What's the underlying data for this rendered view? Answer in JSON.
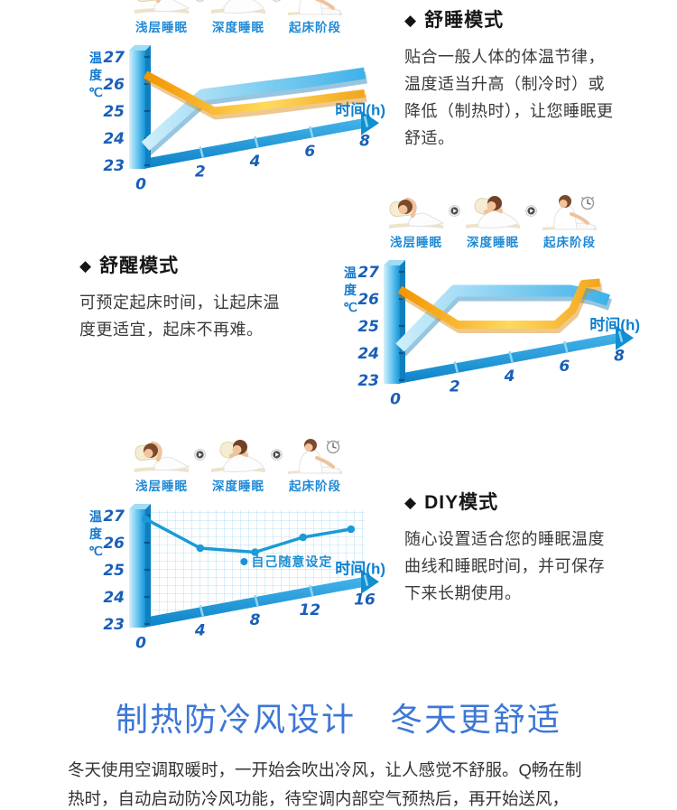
{
  "stages": [
    "浅层睡眠",
    "深度睡眠",
    "起床阶段"
  ],
  "stage_icons": [
    "light-sleep",
    "deep-sleep",
    "wake-up"
  ],
  "sections": [
    {
      "bullet": "◆",
      "title": "舒睡模式",
      "body_lines": [
        "贴合一般人体的体温节律，",
        "温度适当升高（制冷时）或",
        "降低（制热时），让您睡眠更",
        "舒适。"
      ]
    },
    {
      "bullet": "◆",
      "title": "舒醒模式",
      "body_lines": [
        "可预定起床时间，让起床温",
        "度更适宜，起床不再难。"
      ]
    },
    {
      "bullet": "◆",
      "title": "DIY模式",
      "body_lines": [
        "随心设置适合您的睡眠温度",
        "曲线和睡眠时间，并可保存",
        "下来长期使用。"
      ]
    }
  ],
  "chart_data": [
    {
      "type": "line",
      "ylabel_chars": [
        "温",
        "度",
        "℃"
      ],
      "xlabel": "时间(h)",
      "y_ticks": [
        27,
        26,
        25,
        24,
        23
      ],
      "x_ticks": [
        0,
        2,
        4,
        6,
        8
      ],
      "x_max": 8,
      "ylim": [
        23,
        27
      ],
      "grid": false,
      "series": [
        {
          "name": "cool-blue-band",
          "palette": "blue",
          "width": 13,
          "points": [
            [
              0,
              23.7
            ],
            [
              2.1,
              25.6
            ],
            [
              4,
              25.85
            ],
            [
              6,
              26.1
            ],
            [
              8,
              26.4
            ]
          ]
        },
        {
          "name": "warm-orange-band",
          "palette": "orange",
          "width": 9,
          "points": [
            [
              0,
              26.35
            ],
            [
              2.5,
              25.0
            ],
            [
              4,
              25.15
            ],
            [
              6,
              25.4
            ],
            [
              8,
              25.65
            ]
          ]
        }
      ]
    },
    {
      "type": "line",
      "ylabel_chars": [
        "温",
        "度",
        "℃"
      ],
      "xlabel": "时间(h)",
      "y_ticks": [
        27,
        26,
        25,
        24,
        23
      ],
      "x_ticks": [
        0,
        2,
        4,
        6,
        8
      ],
      "x_max": 8,
      "ylim": [
        23,
        27
      ],
      "grid": false,
      "series": [
        {
          "name": "cool-blue-band",
          "palette": "blue",
          "width": 13,
          "points": [
            [
              0,
              24.2
            ],
            [
              2.0,
              26.3
            ],
            [
              6.2,
              26.3
            ],
            [
              7.0,
              26.15
            ],
            [
              7.6,
              25.95
            ]
          ]
        },
        {
          "name": "warm-orange-band",
          "palette": "orange",
          "width": 9,
          "points": [
            [
              0,
              26.35
            ],
            [
              2.1,
              25.05
            ],
            [
              5.7,
              25.05
            ],
            [
              6.3,
              25.6
            ],
            [
              6.7,
              26.55
            ],
            [
              7.3,
              26.6
            ]
          ]
        }
      ]
    },
    {
      "type": "line",
      "ylabel_chars": [
        "温",
        "度",
        "℃"
      ],
      "xlabel": "时间(h)",
      "y_ticks": [
        27,
        26,
        25,
        24,
        23
      ],
      "x_ticks": [
        0,
        4,
        8,
        12,
        16
      ],
      "x_max": 16,
      "ylim": [
        23,
        27
      ],
      "grid": true,
      "line": {
        "name": "diy-curve",
        "points": [
          [
            0,
            26.88
          ],
          [
            4,
            25.8
          ],
          [
            8,
            25.65
          ],
          [
            11.5,
            26.2
          ],
          [
            15,
            26.5
          ]
        ]
      },
      "legend": {
        "label": "自己随意设定",
        "at": [
          7.2,
          25.3
        ]
      }
    }
  ],
  "footer": {
    "title": "制热防冷风设计　冬天更舒适",
    "body_lines": [
      "冬天使用空调取暖时，一开始会吹出冷风，让人感觉不舒服。Q畅在制",
      "热时，自动启动防冷风功能，待空调内部空气预热后，再开始送风，"
    ]
  },
  "colors": {
    "stage_label_blue": "#2089d6",
    "axis_blue": "#1792d4",
    "tick_blue": "#195fb8",
    "ribbon_blue": "#3fb2e8",
    "ribbon_orange": "#f39500",
    "diy_line_blue": "#1b9ad6",
    "heading_blue": "#3d77d6",
    "body_text": "#333333"
  }
}
